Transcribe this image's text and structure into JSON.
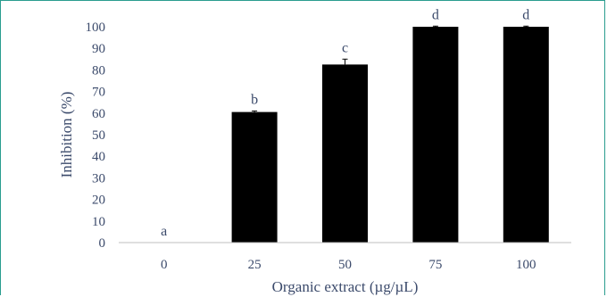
{
  "chart_data": {
    "type": "bar",
    "title": "",
    "xlabel": "Organic extract (µg/µL)",
    "ylabel": "Inhibition (%)",
    "categories": [
      "0",
      "25",
      "50",
      "75",
      "100"
    ],
    "values": [
      0,
      60.5,
      82.5,
      100,
      100
    ],
    "errors": [
      0,
      0.5,
      2.5,
      0.3,
      0.3
    ],
    "significance_labels": [
      "a",
      "b",
      "c",
      "d",
      "d"
    ],
    "ylim": [
      0,
      100
    ],
    "yticks": [
      "0",
      "10",
      "20",
      "30",
      "40",
      "50",
      "60",
      "70",
      "80",
      "90",
      "100"
    ],
    "grid": false,
    "bar_color": "#000000",
    "text_color": "#3b4a6b",
    "border_color": "#2a9d8f"
  }
}
